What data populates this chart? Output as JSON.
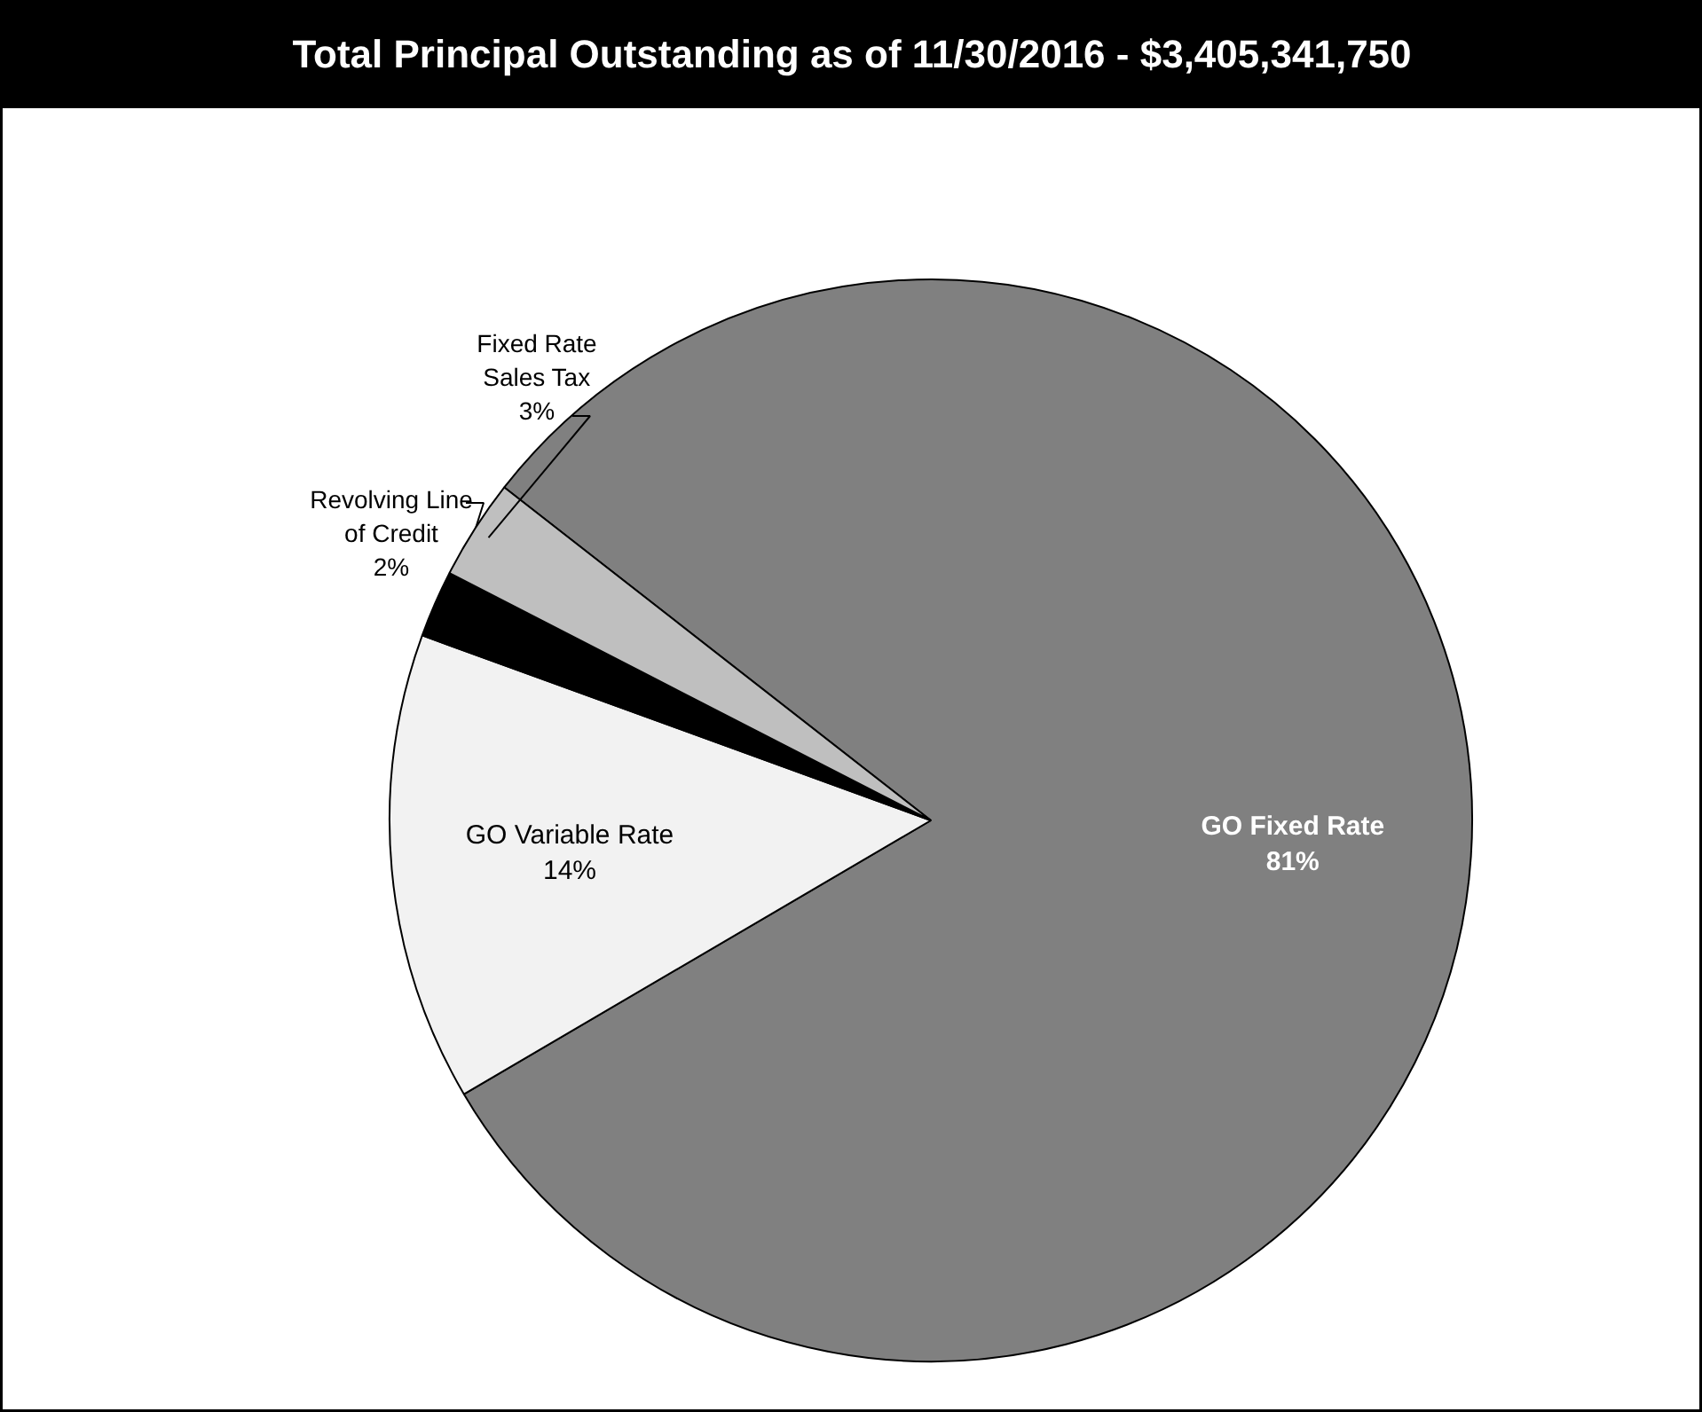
{
  "chart_data": {
    "type": "pie",
    "title": "Total Principal Outstanding as of 11/30/2016 - $3,405,341,750",
    "categories": [
      "GO Fixed Rate",
      "GO Variable Rate",
      "Revolving Line\nof Credit",
      "Fixed Rate\nSales Tax"
    ],
    "values": [
      81,
      14,
      2,
      3
    ],
    "value_labels": [
      "81%",
      "14%",
      "2%",
      "3%"
    ],
    "colors": [
      "#808080",
      "#f2f2f2",
      "#000000",
      "#bfbfbf"
    ]
  }
}
